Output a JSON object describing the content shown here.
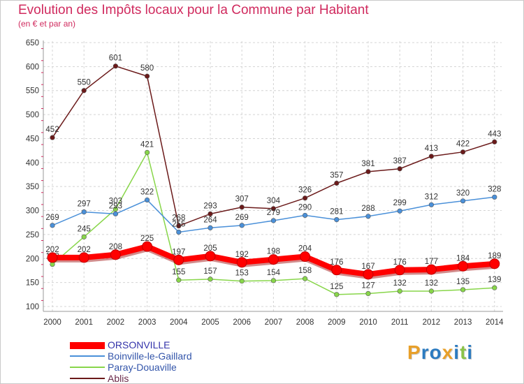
{
  "chart_data": {
    "type": "line",
    "title": "Evolution des Impôts locaux pour la Commune par Habitant",
    "subtitle": "(en € et par an)",
    "xlabel": "",
    "ylabel": "",
    "categories": [
      "2000",
      "2001",
      "2002",
      "2003",
      "2004",
      "2005",
      "2006",
      "2007",
      "2008",
      "2009",
      "2010",
      "2011",
      "2012",
      "2013",
      "2014"
    ],
    "ylim": [
      100,
      650
    ],
    "yticks": [
      "100",
      "150",
      "200",
      "250",
      "300",
      "350",
      "400",
      "450",
      "500",
      "550",
      "600",
      "650"
    ],
    "grid": true,
    "legend_position": "bottom-left",
    "series": [
      {
        "name": "ORSONVILLE",
        "color": "#ff0000",
        "width": "thick",
        "values": [
          202,
          202,
          208,
          225,
          197,
          205,
          192,
          198,
          204,
          176,
          167,
          176,
          177,
          184,
          189
        ]
      },
      {
        "name": "Boinville-le-Gaillard",
        "color": "#4a90d9",
        "width": "thin",
        "values": [
          269,
          297,
          293,
          322,
          255,
          264,
          269,
          279,
          290,
          281,
          288,
          299,
          312,
          320,
          328
        ]
      },
      {
        "name": "Paray-Douaville",
        "color": "#88d64a",
        "width": "thin",
        "values": [
          188,
          245,
          303,
          421,
          155,
          157,
          153,
          154,
          158,
          125,
          127,
          132,
          132,
          135,
          139
        ]
      },
      {
        "name": "Ablis",
        "color": "#6b1a1a",
        "width": "thin",
        "values": [
          452,
          550,
          601,
          580,
          268,
          293,
          307,
          304,
          326,
          357,
          381,
          387,
          413,
          422,
          443
        ]
      }
    ]
  },
  "logo": {
    "letters": [
      "P",
      "r",
      "o",
      "x",
      "i",
      "t",
      "i"
    ],
    "colors": [
      "#e8a02a",
      "#2c7bc0",
      "#2c7bc0",
      "#e8a02a",
      "#2c7bc0",
      "#8bc34a",
      "#2c7bc0"
    ]
  }
}
